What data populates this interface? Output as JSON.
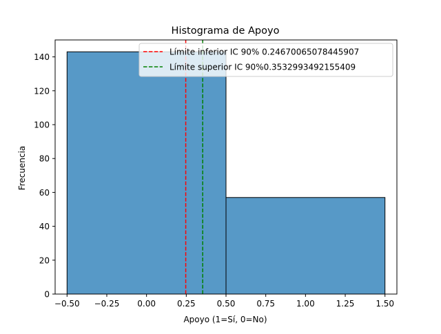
{
  "chart_data": {
    "type": "bar",
    "title": "Histograma de Apoyo",
    "xlabel": "Apoyo (1=Sí, 0=No)",
    "ylabel": "Frecuencia",
    "xlim": [
      -0.575,
      1.575
    ],
    "ylim": [
      0,
      150
    ],
    "xticks": [
      -0.5,
      -0.25,
      0.0,
      0.25,
      0.5,
      0.75,
      1.0,
      1.25,
      1.5
    ],
    "xtick_labels": [
      "−0.50",
      "−0.25",
      "0.00",
      "0.25",
      "0.50",
      "0.75",
      "1.00",
      "1.25",
      "1.50"
    ],
    "yticks": [
      0,
      20,
      40,
      60,
      80,
      100,
      120,
      140
    ],
    "ytick_labels": [
      "0",
      "20",
      "40",
      "60",
      "80",
      "100",
      "120",
      "140"
    ],
    "bins": [
      {
        "x0": -0.5,
        "x1": 0.5,
        "value": 143
      },
      {
        "x0": 0.5,
        "x1": 1.5,
        "value": 57
      }
    ],
    "bar_color": "#5799c7",
    "lines": [
      {
        "label": "Límite inferior IC 90% 0.24670065078445907",
        "x": 0.24670065078445907,
        "color": "#ff0000",
        "style": "dashed"
      },
      {
        "label": "Límite superior IC 90%0.3532993492155409",
        "x": 0.3532993492155409,
        "color": "#008000",
        "style": "dashed"
      }
    ],
    "legend_position": "upper right",
    "grid": false
  }
}
